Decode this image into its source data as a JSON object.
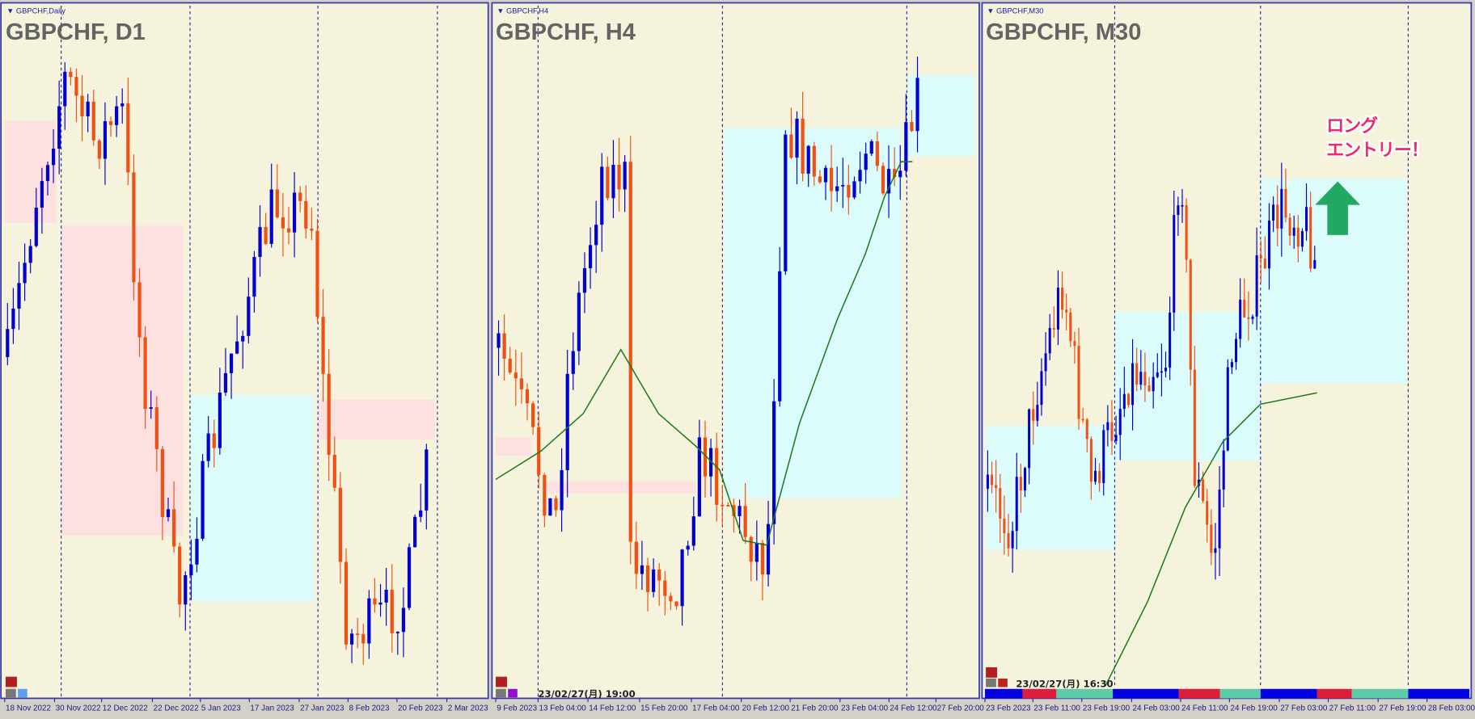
{
  "colors": {
    "background": "#f5f3dc",
    "bull": "#0000d0",
    "bear": "#f05014",
    "support_zone": "#dcfbfb",
    "resistance_zone": "#fde0e0",
    "moving_average": "#1a7a1a",
    "annotation": "#f0286e",
    "arrow": "#22a860"
  },
  "panels": [
    {
      "menu_label": "GBPCHF,Daily",
      "title": "GBPCHF, D1",
      "axis_labels": [
        "18 Nov 2022",
        "30 Nov 2022",
        "12 Dec 2022",
        "22 Dec 2022",
        "5 Jan 2023",
        "17 Jan 2023",
        "27 Jan 2023",
        "8 Feb 2023",
        "20 Feb 2023",
        "2 Mar 2023"
      ]
    },
    {
      "menu_label": "GBPCHF,H4",
      "title": "GBPCHF, H4",
      "timestamp": "23/02/27(月) 19:00",
      "axis_labels": [
        "9 Feb 2023",
        "13 Feb 04:00",
        "14 Feb 12:00",
        "15 Feb 20:00",
        "17 Feb 04:00",
        "20 Feb 12:00",
        "21 Feb 20:00",
        "23 Feb 04:00",
        "24 Feb 12:00",
        "27 Feb 20:00"
      ]
    },
    {
      "menu_label": "GBPCHF,M30",
      "title": "GBPCHF, M30",
      "timestamp": "23/02/27(月) 16:30",
      "axis_labels": [
        "23 Feb 2023",
        "23 Feb 11:00",
        "23 Feb 19:00",
        "24 Feb 03:00",
        "24 Feb 11:00",
        "24 Feb 19:00",
        "27 Feb 03:00",
        "27 Feb 11:00",
        "27 Feb 19:00",
        "28 Feb 03:00"
      ]
    }
  ],
  "annotation": {
    "line1": "ロング",
    "line2": "エントリー！",
    "arrow_icon": "up-arrow-icon"
  }
}
